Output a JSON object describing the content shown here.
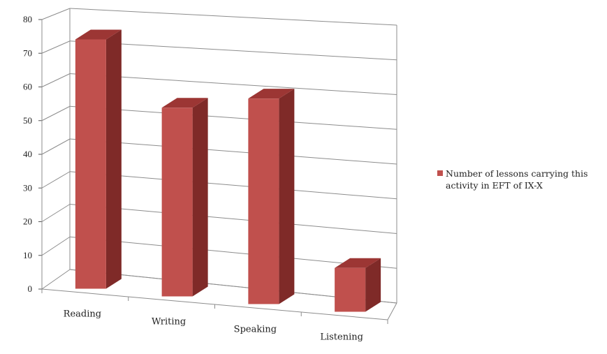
{
  "chart_data": {
    "type": "bar",
    "categories": [
      "Reading",
      "Writing",
      "Speaking",
      "Listening"
    ],
    "series": [
      {
        "name": "Number of lessons carrying this activity in EFT of IX-X",
        "values": [
          74,
          56,
          61,
          13
        ]
      }
    ],
    "ylim": [
      0,
      80
    ],
    "y_ticks": [
      "0",
      "10",
      "20",
      "30",
      "40",
      "50",
      "60",
      "70",
      "80"
    ],
    "grid": true,
    "legend_position": "right",
    "colors": {
      "bar_front": "#c0504d",
      "bar_side": "#7f2a28",
      "bar_top": "#9c3634",
      "gridline": "#8c8c8c"
    }
  }
}
